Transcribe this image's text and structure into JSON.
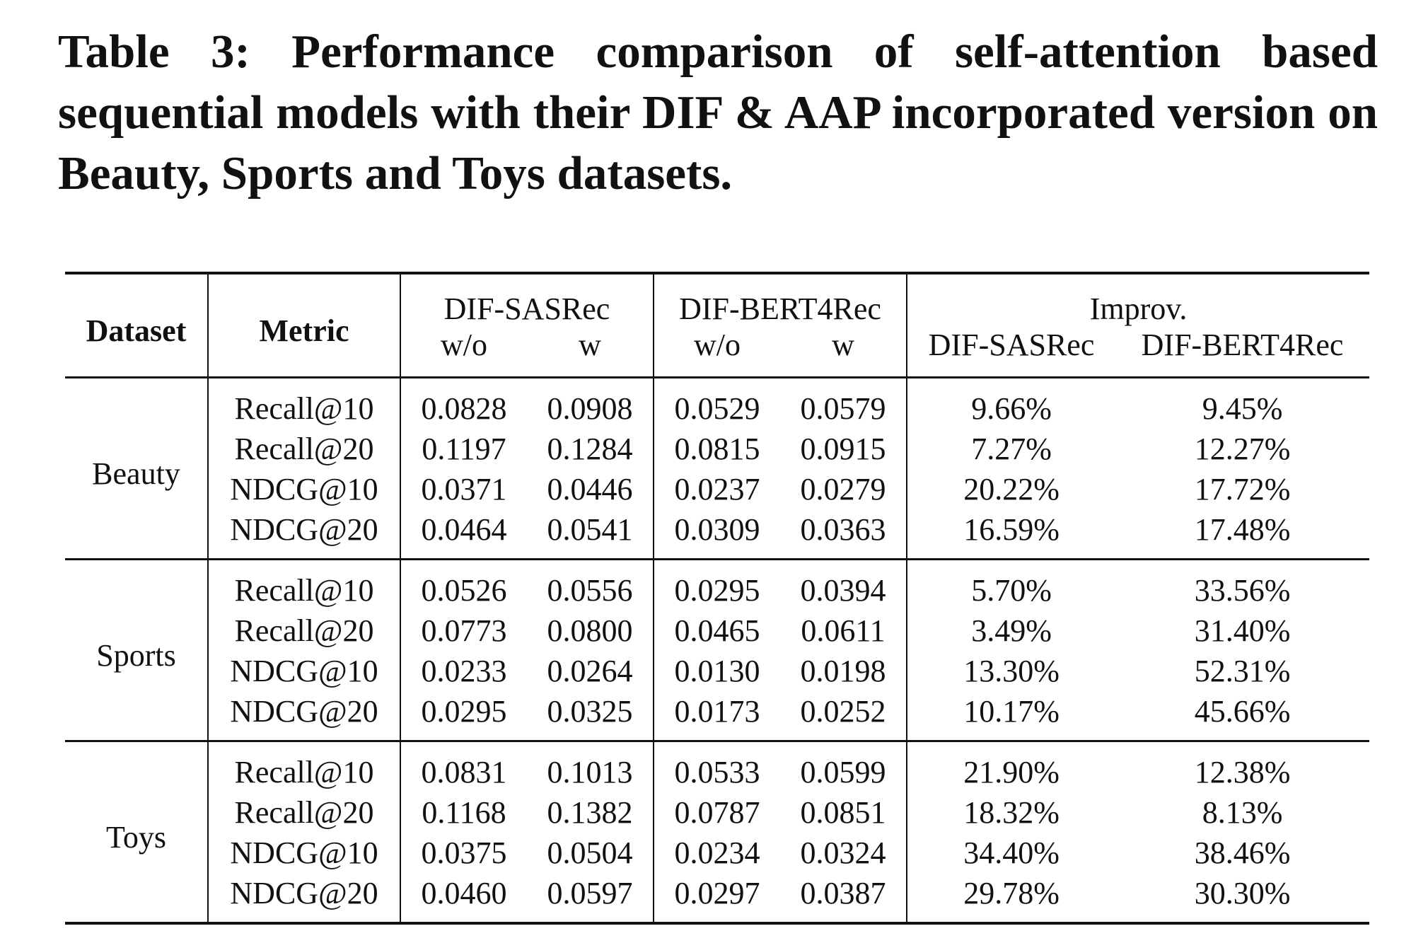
{
  "caption": "Table 3: Performance comparison of self-attention based sequential models with their DIF & AAP incorporated version on Beauty, Sports and Toys datasets.",
  "header": {
    "dataset": "Dataset",
    "metric": "Metric",
    "model1": "DIF-SASRec",
    "model2": "DIF-BERT4Rec",
    "improv": "Improv.",
    "wo": "w/o",
    "w": "w",
    "improv_model1": "DIF-SASRec",
    "improv_model2": "DIF-BERT4Rec"
  },
  "groups": [
    {
      "dataset": "Beauty",
      "rows": [
        {
          "metric": "Recall@10",
          "sas_wo": "0.0828",
          "sas_w": "0.0908",
          "bert_wo": "0.0529",
          "bert_w": "0.0579",
          "imp_sas": "9.66%",
          "imp_bert": "9.45%"
        },
        {
          "metric": "Recall@20",
          "sas_wo": "0.1197",
          "sas_w": "0.1284",
          "bert_wo": "0.0815",
          "bert_w": "0.0915",
          "imp_sas": "7.27%",
          "imp_bert": "12.27%"
        },
        {
          "metric": "NDCG@10",
          "sas_wo": "0.0371",
          "sas_w": "0.0446",
          "bert_wo": "0.0237",
          "bert_w": "0.0279",
          "imp_sas": "20.22%",
          "imp_bert": "17.72%"
        },
        {
          "metric": "NDCG@20",
          "sas_wo": "0.0464",
          "sas_w": "0.0541",
          "bert_wo": "0.0309",
          "bert_w": "0.0363",
          "imp_sas": "16.59%",
          "imp_bert": "17.48%"
        }
      ]
    },
    {
      "dataset": "Sports",
      "rows": [
        {
          "metric": "Recall@10",
          "sas_wo": "0.0526",
          "sas_w": "0.0556",
          "bert_wo": "0.0295",
          "bert_w": "0.0394",
          "imp_sas": "5.70%",
          "imp_bert": "33.56%"
        },
        {
          "metric": "Recall@20",
          "sas_wo": "0.0773",
          "sas_w": "0.0800",
          "bert_wo": "0.0465",
          "bert_w": "0.0611",
          "imp_sas": "3.49%",
          "imp_bert": "31.40%"
        },
        {
          "metric": "NDCG@10",
          "sas_wo": "0.0233",
          "sas_w": "0.0264",
          "bert_wo": "0.0130",
          "bert_w": "0.0198",
          "imp_sas": "13.30%",
          "imp_bert": "52.31%"
        },
        {
          "metric": "NDCG@20",
          "sas_wo": "0.0295",
          "sas_w": "0.0325",
          "bert_wo": "0.0173",
          "bert_w": "0.0252",
          "imp_sas": "10.17%",
          "imp_bert": "45.66%"
        }
      ]
    },
    {
      "dataset": "Toys",
      "rows": [
        {
          "metric": "Recall@10",
          "sas_wo": "0.0831",
          "sas_w": "0.1013",
          "bert_wo": "0.0533",
          "bert_w": "0.0599",
          "imp_sas": "21.90%",
          "imp_bert": "12.38%"
        },
        {
          "metric": "Recall@20",
          "sas_wo": "0.1168",
          "sas_w": "0.1382",
          "bert_wo": "0.0787",
          "bert_w": "0.0851",
          "imp_sas": "18.32%",
          "imp_bert": "8.13%"
        },
        {
          "metric": "NDCG@10",
          "sas_wo": "0.0375",
          "sas_w": "0.0504",
          "bert_wo": "0.0234",
          "bert_w": "0.0324",
          "imp_sas": "34.40%",
          "imp_bert": "38.46%"
        },
        {
          "metric": "NDCG@20",
          "sas_wo": "0.0460",
          "sas_w": "0.0597",
          "bert_wo": "0.0297",
          "bert_w": "0.0387",
          "imp_sas": "29.78%",
          "imp_bert": "30.30%"
        }
      ]
    }
  ]
}
